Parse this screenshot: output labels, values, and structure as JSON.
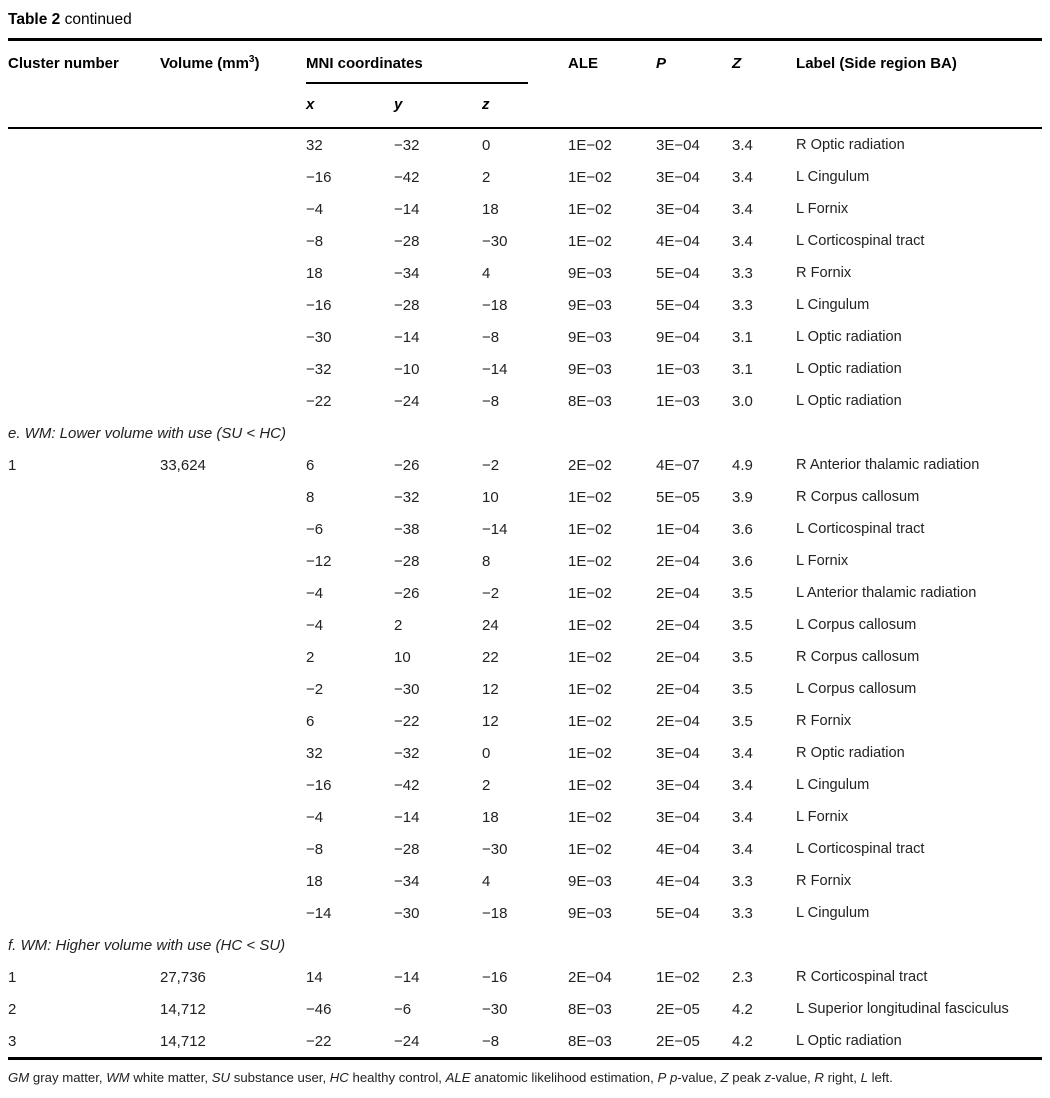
{
  "title": {
    "bold": "Table 2",
    "continued": " continued"
  },
  "columns": {
    "cluster": "Cluster number",
    "volume_pre": "Volume (mm",
    "volume_sup": "3",
    "volume_post": ")",
    "mni": "MNI coordinates",
    "x": "x",
    "y": "y",
    "z_coord": "z",
    "ale": "ALE",
    "p": "P",
    "z": "Z",
    "label": "Label (Side region BA)"
  },
  "sections": [
    {
      "header": null,
      "rows": [
        {
          "cluster": "",
          "volume": "",
          "x": "32",
          "y": "−32",
          "z": "0",
          "ale": "1E−02",
          "p": "3E−04",
          "zval": "3.4",
          "label": "R Optic radiation"
        },
        {
          "cluster": "",
          "volume": "",
          "x": "−16",
          "y": "−42",
          "z": "2",
          "ale": "1E−02",
          "p": "3E−04",
          "zval": "3.4",
          "label": "L Cingulum"
        },
        {
          "cluster": "",
          "volume": "",
          "x": "−4",
          "y": "−14",
          "z": "18",
          "ale": "1E−02",
          "p": "3E−04",
          "zval": "3.4",
          "label": "L Fornix"
        },
        {
          "cluster": "",
          "volume": "",
          "x": "−8",
          "y": "−28",
          "z": "−30",
          "ale": "1E−02",
          "p": "4E−04",
          "zval": "3.4",
          "label": "L Corticospinal tract"
        },
        {
          "cluster": "",
          "volume": "",
          "x": "18",
          "y": "−34",
          "z": "4",
          "ale": "9E−03",
          "p": "5E−04",
          "zval": "3.3",
          "label": "R Fornix"
        },
        {
          "cluster": "",
          "volume": "",
          "x": "−16",
          "y": "−28",
          "z": "−18",
          "ale": "9E−03",
          "p": "5E−04",
          "zval": "3.3",
          "label": "L Cingulum"
        },
        {
          "cluster": "",
          "volume": "",
          "x": "−30",
          "y": "−14",
          "z": "−8",
          "ale": "9E−03",
          "p": "9E−04",
          "zval": "3.1",
          "label": "L Optic radiation"
        },
        {
          "cluster": "",
          "volume": "",
          "x": "−32",
          "y": "−10",
          "z": "−14",
          "ale": "9E−03",
          "p": "1E−03",
          "zval": "3.1",
          "label": "L Optic radiation"
        },
        {
          "cluster": "",
          "volume": "",
          "x": "−22",
          "y": "−24",
          "z": "−8",
          "ale": "8E−03",
          "p": "1E−03",
          "zval": "3.0",
          "label": "L Optic radiation"
        }
      ]
    },
    {
      "header": "e. WM: Lower volume with use (SU < HC)",
      "rows": [
        {
          "cluster": "1",
          "volume": "33,624",
          "x": "6",
          "y": "−26",
          "z": "−2",
          "ale": "2E−02",
          "p": "4E−07",
          "zval": "4.9",
          "label": "R Anterior thalamic radiation"
        },
        {
          "cluster": "",
          "volume": "",
          "x": "8",
          "y": "−32",
          "z": "10",
          "ale": "1E−02",
          "p": "5E−05",
          "zval": "3.9",
          "label": "R Corpus callosum"
        },
        {
          "cluster": "",
          "volume": "",
          "x": "−6",
          "y": "−38",
          "z": "−14",
          "ale": "1E−02",
          "p": "1E−04",
          "zval": "3.6",
          "label": "L Corticospinal tract"
        },
        {
          "cluster": "",
          "volume": "",
          "x": "−12",
          "y": "−28",
          "z": "8",
          "ale": "1E−02",
          "p": "2E−04",
          "zval": "3.6",
          "label": "L Fornix"
        },
        {
          "cluster": "",
          "volume": "",
          "x": "−4",
          "y": "−26",
          "z": "−2",
          "ale": "1E−02",
          "p": "2E−04",
          "zval": "3.5",
          "label": "L Anterior thalamic radiation"
        },
        {
          "cluster": "",
          "volume": "",
          "x": "−4",
          "y": "2",
          "z": "24",
          "ale": "1E−02",
          "p": "2E−04",
          "zval": "3.5",
          "label": "L Corpus callosum"
        },
        {
          "cluster": "",
          "volume": "",
          "x": "2",
          "y": "10",
          "z": "22",
          "ale": "1E−02",
          "p": "2E−04",
          "zval": "3.5",
          "label": "R Corpus callosum"
        },
        {
          "cluster": "",
          "volume": "",
          "x": "−2",
          "y": "−30",
          "z": "12",
          "ale": "1E−02",
          "p": "2E−04",
          "zval": "3.5",
          "label": "L Corpus callosum"
        },
        {
          "cluster": "",
          "volume": "",
          "x": "6",
          "y": "−22",
          "z": "12",
          "ale": "1E−02",
          "p": "2E−04",
          "zval": "3.5",
          "label": "R Fornix"
        },
        {
          "cluster": "",
          "volume": "",
          "x": "32",
          "y": "−32",
          "z": "0",
          "ale": "1E−02",
          "p": "3E−04",
          "zval": "3.4",
          "label": "R Optic radiation"
        },
        {
          "cluster": "",
          "volume": "",
          "x": "−16",
          "y": "−42",
          "z": "2",
          "ale": "1E−02",
          "p": "3E−04",
          "zval": "3.4",
          "label": "L Cingulum"
        },
        {
          "cluster": "",
          "volume": "",
          "x": "−4",
          "y": "−14",
          "z": "18",
          "ale": "1E−02",
          "p": "3E−04",
          "zval": "3.4",
          "label": "L Fornix"
        },
        {
          "cluster": "",
          "volume": "",
          "x": "−8",
          "y": "−28",
          "z": "−30",
          "ale": "1E−02",
          "p": "4E−04",
          "zval": "3.4",
          "label": "L Corticospinal tract"
        },
        {
          "cluster": "",
          "volume": "",
          "x": "18",
          "y": "−34",
          "z": "4",
          "ale": "9E−03",
          "p": "4E−04",
          "zval": "3.3",
          "label": "R Fornix"
        },
        {
          "cluster": "",
          "volume": "",
          "x": "−14",
          "y": "−30",
          "z": "−18",
          "ale": "9E−03",
          "p": "5E−04",
          "zval": "3.3",
          "label": "L Cingulum"
        }
      ]
    },
    {
      "header": "f. WM: Higher volume with use (HC < SU)",
      "rows": [
        {
          "cluster": "1",
          "volume": "27,736",
          "x": "14",
          "y": "−14",
          "z": "−16",
          "ale": "2E−04",
          "p": "1E−02",
          "zval": "2.3",
          "label": "R Corticospinal tract"
        },
        {
          "cluster": "2",
          "volume": "14,712",
          "x": "−46",
          "y": "−6",
          "z": "−30",
          "ale": "8E−03",
          "p": "2E−05",
          "zval": "4.2",
          "label": "L Superior longitudinal fasciculus"
        },
        {
          "cluster": "3",
          "volume": "14,712",
          "x": "−22",
          "y": "−24",
          "z": "−8",
          "ale": "8E−03",
          "p": "2E−05",
          "zval": "4.2",
          "label": "L Optic radiation"
        }
      ]
    }
  ],
  "footnote": [
    {
      "text": "GM",
      "italic": true
    },
    {
      "text": " gray matter, ",
      "italic": false
    },
    {
      "text": "WM",
      "italic": true
    },
    {
      "text": " white matter, ",
      "italic": false
    },
    {
      "text": "SU",
      "italic": true
    },
    {
      "text": " substance user, ",
      "italic": false
    },
    {
      "text": "HC",
      "italic": true
    },
    {
      "text": " healthy control, ",
      "italic": false
    },
    {
      "text": "ALE",
      "italic": true
    },
    {
      "text": " anatomic likelihood estimation, ",
      "italic": false
    },
    {
      "text": "P",
      "italic": true
    },
    {
      "text": " ",
      "italic": false
    },
    {
      "text": "p",
      "italic": true
    },
    {
      "text": "-value, ",
      "italic": false
    },
    {
      "text": "Z",
      "italic": true
    },
    {
      "text": " peak ",
      "italic": false
    },
    {
      "text": "z",
      "italic": true
    },
    {
      "text": "-value, ",
      "italic": false
    },
    {
      "text": "R",
      "italic": true
    },
    {
      "text": " right, ",
      "italic": false
    },
    {
      "text": "L",
      "italic": true
    },
    {
      "text": " left.",
      "italic": false
    }
  ]
}
